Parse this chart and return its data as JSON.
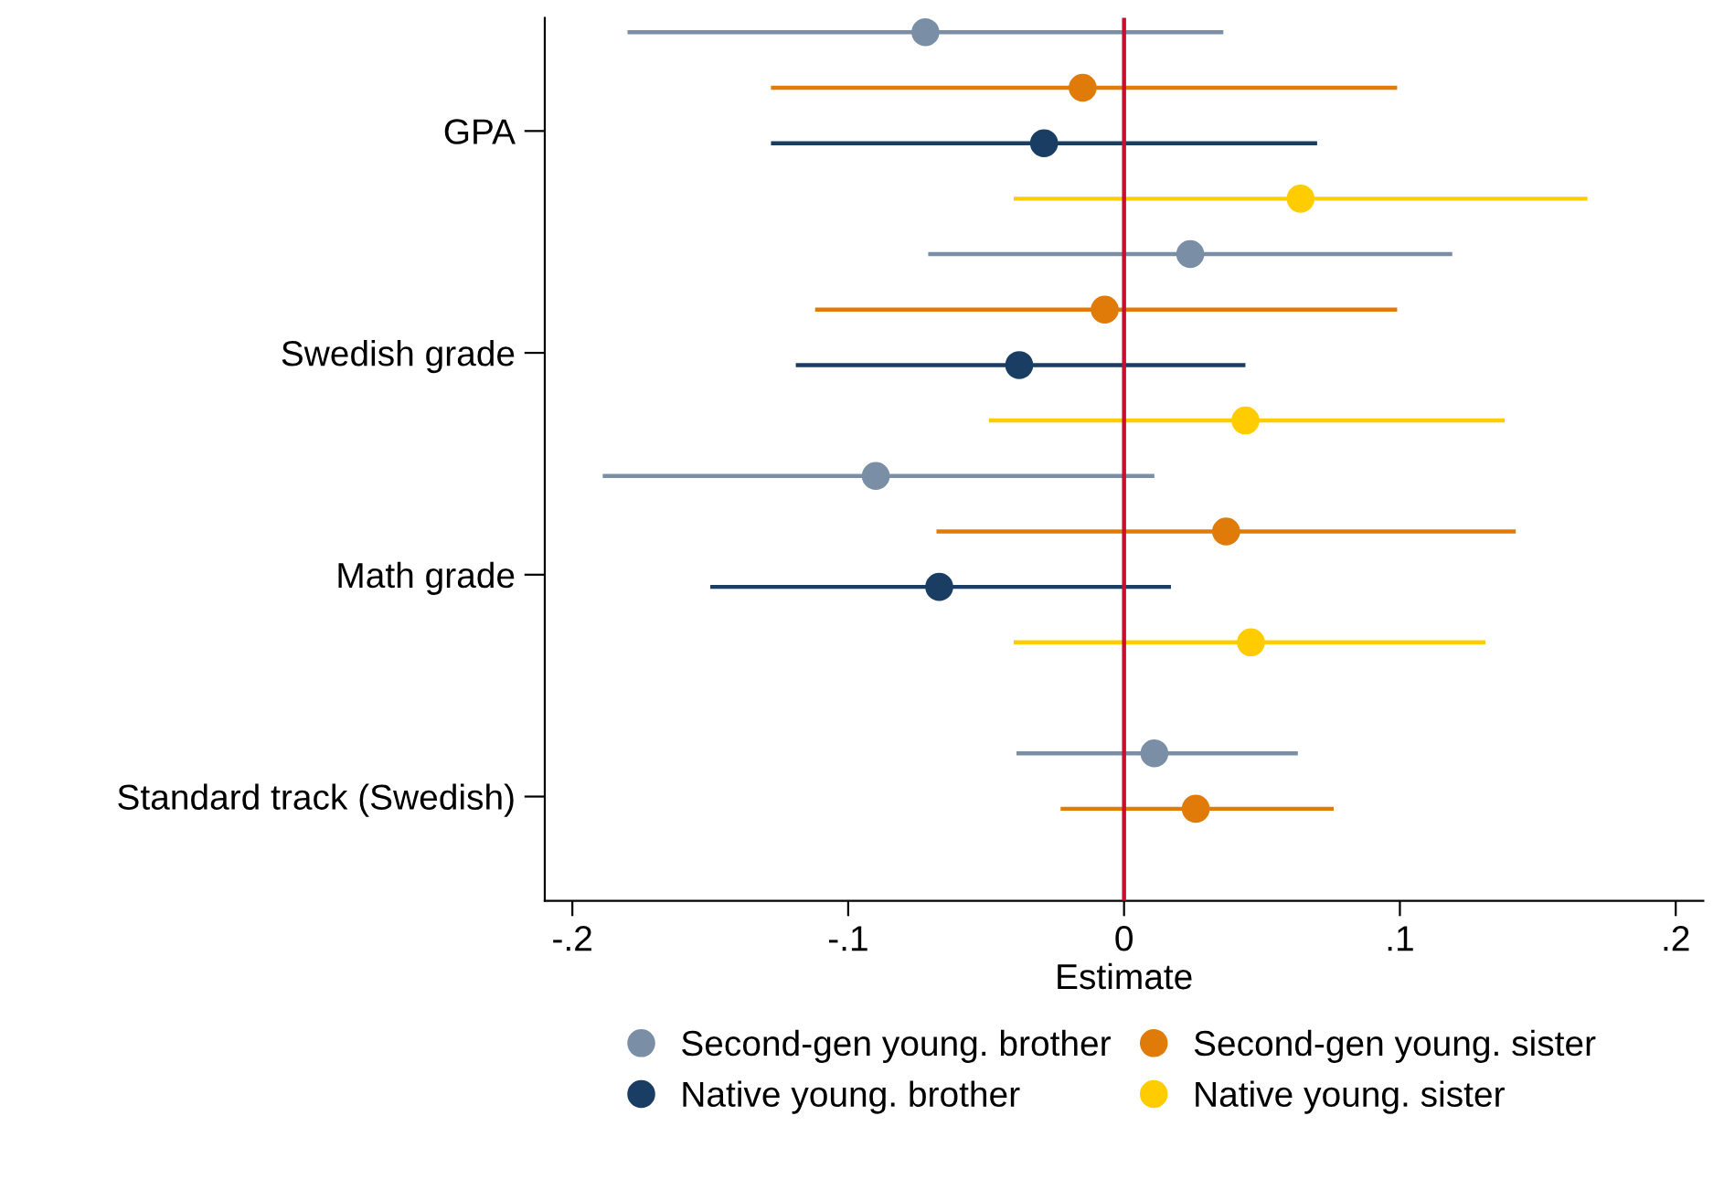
{
  "chart_data": {
    "type": "scatter",
    "orientation": "horizontal",
    "xlabel": "Estimate",
    "categories": [
      "GPA",
      "Swedish grade",
      "Math grade",
      "Standard track (Swedish)"
    ],
    "series": [
      {
        "name": "Second-gen young. brother",
        "color": "#7a8fa6",
        "values": [
          -0.072,
          0.024,
          -0.09,
          0.011
        ],
        "errors": [
          [
            -0.18,
            0.036
          ],
          [
            -0.071,
            0.119
          ],
          [
            -0.189,
            0.011
          ],
          [
            -0.039,
            0.063
          ]
        ]
      },
      {
        "name": "Second-gen young. sister",
        "color": "#e07b0a",
        "values": [
          -0.015,
          -0.007,
          0.037,
          0.026
        ],
        "errors": [
          [
            -0.128,
            0.099
          ],
          [
            -0.112,
            0.099
          ],
          [
            -0.068,
            0.142
          ],
          [
            -0.023,
            0.076
          ]
        ]
      },
      {
        "name": "Native young. brother",
        "color": "#1a3d63",
        "values": [
          -0.029,
          -0.038,
          -0.067,
          null
        ],
        "errors": [
          [
            -0.128,
            0.07
          ],
          [
            -0.119,
            0.044
          ],
          [
            -0.15,
            0.017
          ],
          null
        ]
      },
      {
        "name": "Native young. sister",
        "color": "#ffcc00",
        "values": [
          0.064,
          0.044,
          0.046,
          null
        ],
        "errors": [
          [
            -0.04,
            0.168
          ],
          [
            -0.049,
            0.138
          ],
          [
            -0.04,
            0.131
          ],
          null
        ]
      }
    ],
    "xlim": [
      -0.21,
      0.21
    ],
    "xticks": [
      {
        "value": -0.2,
        "label": "-.2"
      },
      {
        "value": -0.1,
        "label": "-.1"
      },
      0,
      {
        "value": 0.1,
        "label": ".1"
      },
      {
        "value": 0.2,
        "label": ".2"
      }
    ],
    "ref_lines": [
      {
        "axis": "x",
        "value": 0,
        "color": "#c8102e"
      }
    ],
    "marker": "circle",
    "legend": "bottom",
    "grid": false
  }
}
